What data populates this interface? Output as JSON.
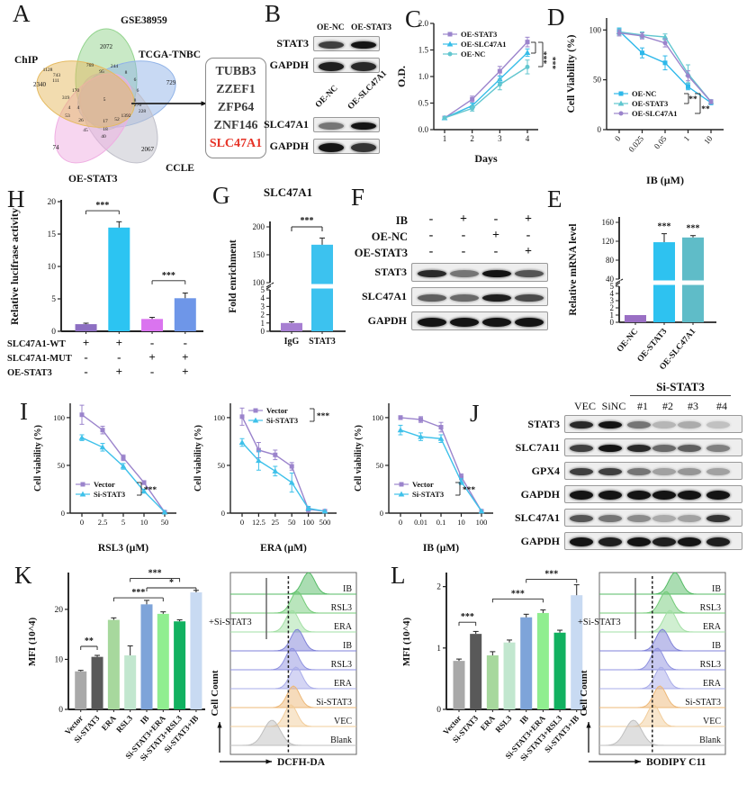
{
  "panelA": {
    "label": "A",
    "sets": [
      {
        "name": "GSE38959",
        "count": "2072",
        "color": "#93d48e"
      },
      {
        "name": "TCGA-TNBC",
        "count": "729",
        "color": "#92b4e8"
      },
      {
        "name": "CCLE",
        "count": "2067",
        "color": "#bfbfc9"
      },
      {
        "name": "OE-STAT3",
        "count": "74",
        "color": "#efaee2"
      },
      {
        "name": "ChIP",
        "count": "2340",
        "color": "#e5ba60"
      }
    ],
    "overlaps": [
      "1128",
      "743",
      "769",
      "95",
      "244",
      "8",
      "111",
      "6",
      "170",
      "6",
      "319",
      "5",
      "8",
      "276",
      "228",
      "4",
      "4",
      "53",
      "26",
      "17",
      "52",
      "1392",
      "45",
      "18",
      "40"
    ],
    "genes": [
      "TUBB3",
      "ZZEF1",
      "ZFP64",
      "ZNF146"
    ],
    "gene_highlight": "SLC47A1"
  },
  "panelB": {
    "label": "B",
    "group1": {
      "headers": [
        "OE-NC",
        "OE-STAT3"
      ],
      "rows": [
        {
          "label": "STAT3",
          "bands": [
            0.8,
            1
          ]
        },
        {
          "label": "GAPDH",
          "bands": [
            0.95,
            0.9
          ],
          "h": 10
        }
      ]
    },
    "group2": {
      "headers": [
        "OE-NC",
        "OE-SLC47A1"
      ],
      "rows": [
        {
          "label": "SLC47A1",
          "bands": [
            0.55,
            1
          ]
        },
        {
          "label": "GAPDH",
          "bands": [
            1,
            0.85
          ],
          "h": 10
        }
      ]
    }
  },
  "panelC": {
    "label": "C",
    "chart": {
      "type": "line",
      "ylabel": "O.D.",
      "xlabel": "Days",
      "ylim": [
        0,
        2
      ],
      "yticks": [
        0,
        0.5,
        1,
        1.5,
        2
      ],
      "x": [
        "1",
        "2",
        "3",
        "4"
      ],
      "series": [
        {
          "name": "OE-STAT3",
          "color": "#9b84cc",
          "marker": "square",
          "values": [
            0.22,
            0.57,
            1.1,
            1.65
          ],
          "err": [
            0.02,
            0.06,
            0.09,
            0.09
          ]
        },
        {
          "name": "OE-SLC47A1",
          "color": "#35bde8",
          "marker": "triangle",
          "values": [
            0.22,
            0.45,
            0.95,
            1.45
          ],
          "err": [
            0.02,
            0.05,
            0.06,
            0.07
          ]
        },
        {
          "name": "OE-NC",
          "color": "#62c6cf",
          "marker": "circle",
          "values": [
            0.22,
            0.4,
            0.85,
            1.18
          ],
          "err": [
            0.02,
            0.05,
            0.1,
            0.13
          ]
        }
      ],
      "sig": [
        "***",
        "***"
      ]
    }
  },
  "panelD": {
    "label": "D",
    "chart": {
      "type": "line",
      "ylabel": "Cell Viability (%)",
      "xlabel": "IB (µM)",
      "ylim": [
        0,
        112
      ],
      "yticks": [
        0,
        50,
        100
      ],
      "x": [
        "0",
        "0.025",
        "0.05",
        "1",
        "10"
      ],
      "series": [
        {
          "name": "OE-NC",
          "color": "#2eb8ea",
          "marker": "square",
          "values": [
            99,
            77,
            67,
            43,
            27
          ],
          "err": [
            3,
            5,
            7,
            3,
            2
          ]
        },
        {
          "name": "OE-STAT3",
          "color": "#5fc6cf",
          "marker": "triangle",
          "values": [
            98,
            95,
            93,
            56,
            28
          ],
          "err": [
            3,
            3,
            3,
            9,
            2
          ]
        },
        {
          "name": "OE-SLC47A1",
          "color": "#9b84cc",
          "marker": "circle",
          "values": [
            97,
            94,
            87,
            54,
            28
          ],
          "err": [
            3,
            3,
            4,
            5,
            2
          ]
        }
      ],
      "sig": [
        "**",
        "**"
      ]
    }
  },
  "panelE": {
    "label": "E",
    "chart": {
      "type": "broken-bar",
      "ylabel": "Relative mRNA level",
      "cats": [
        "OE-NC",
        "OE-STAT3",
        "OE-SLC47A1"
      ],
      "values": [
        1,
        118,
        128
      ],
      "err": [
        0.1,
        18,
        4
      ],
      "colors": [
        "#9a6fc4",
        "#2ec2f0",
        "#5fbcc8"
      ],
      "low_ticks": [
        0,
        1,
        2,
        3,
        4,
        5
      ],
      "high_ticks": [
        40,
        80,
        120,
        160
      ],
      "sig": [
        "",
        "***",
        "***"
      ]
    }
  },
  "panelF": {
    "label": "F",
    "conditions": [
      {
        "label": "IB",
        "syms": [
          "-",
          "+",
          "-",
          "+"
        ]
      },
      {
        "label": "OE-NC",
        "syms": [
          "-",
          "-",
          "+",
          "-"
        ]
      },
      {
        "label": "OE-STAT3",
        "syms": [
          "-",
          "-",
          "-",
          "+"
        ]
      }
    ],
    "rows": [
      {
        "label": "STAT3",
        "bands": [
          0.9,
          0.55,
          1,
          0.7
        ]
      },
      {
        "label": "SLC47A1",
        "bands": [
          0.65,
          0.6,
          0.95,
          0.75
        ]
      },
      {
        "label": "GAPDH",
        "bands": [
          1,
          1,
          1,
          1
        ],
        "h": 10
      }
    ]
  },
  "panelG": {
    "label": "G",
    "title": "SLC47A1",
    "chart": {
      "type": "broken-bar",
      "ylabel": "Fold enrichment",
      "cats": [
        "IgG",
        "STAT3"
      ],
      "values": [
        1,
        168
      ],
      "err": [
        0.15,
        12
      ],
      "colors": [
        "#a77fd2",
        "#3cc2ef"
      ],
      "low_ticks": [
        0,
        1,
        2,
        3,
        4,
        5
      ],
      "high_ticks": [
        100,
        150,
        200
      ],
      "sig_bracket": "***"
    }
  },
  "panelH": {
    "label": "H",
    "chart": {
      "type": "bar",
      "ylabel": "Relative lucifrase activity",
      "yticks": [
        0,
        5,
        10,
        15,
        20
      ],
      "values": [
        1.1,
        16,
        1.9,
        5.1
      ],
      "err": [
        0.15,
        0.9,
        0.25,
        0.8
      ],
      "colors": [
        "#8d6fc2",
        "#2cc4f2",
        "#da74ef",
        "#6e96e8"
      ],
      "brackets": [
        [
          0,
          1,
          18.6,
          "***"
        ],
        [
          2,
          3,
          7.8,
          "***"
        ]
      ]
    },
    "matrix": [
      {
        "label": "SLC47A1-WT",
        "syms": [
          "+",
          "+",
          "-",
          "-"
        ]
      },
      {
        "label": "SLC47A1-MUT",
        "syms": [
          "-",
          "-",
          "+",
          "+"
        ]
      },
      {
        "label": "OE-STAT3",
        "syms": [
          "-",
          "+",
          "-",
          "+"
        ]
      }
    ]
  },
  "panelI": {
    "label": "I",
    "charts": [
      {
        "ylabel": "Cell viability (%)",
        "xlabel": "RSL3 (µM)",
        "ylim": [
          0,
          115
        ],
        "yticks": [
          0,
          50,
          100
        ],
        "x": [
          "0",
          "2.5",
          "5",
          "10",
          "50"
        ],
        "series": [
          {
            "name": "Vector",
            "color": "#9b84cc",
            "marker": "square",
            "values": [
              103,
              87,
              58,
              32,
              1
            ],
            "err": [
              10,
              4,
              3,
              2,
              1
            ]
          },
          {
            "name": "Si-STAT3",
            "color": "#3ec1ea",
            "marker": "triangle",
            "values": [
              79,
              69,
              49,
              23,
              1
            ],
            "err": [
              3,
              4,
              3,
              2,
              1
            ]
          }
        ],
        "sig": "***"
      },
      {
        "ylabel": "Cell viability (%)",
        "xlabel": "ERA (µM)",
        "ylim": [
          0,
          115
        ],
        "yticks": [
          0,
          50,
          100
        ],
        "x": [
          "0",
          "12.5",
          "25",
          "50",
          "100",
          "500"
        ],
        "series": [
          {
            "name": "Vector",
            "color": "#9b84cc",
            "marker": "square",
            "values": [
              101,
              66,
              61,
              49,
              4,
              2
            ],
            "err": [
              9,
              8,
              5,
              4,
              3,
              1
            ]
          },
          {
            "name": "Si-STAT3",
            "color": "#3ec1ea",
            "marker": "triangle",
            "values": [
              74,
              55,
              44,
              32,
              5,
              2
            ],
            "err": [
              4,
              10,
              5,
              10,
              2,
              1
            ]
          }
        ],
        "sig": "***"
      },
      {
        "ylabel": "Cell viability (%)",
        "xlabel": "IB (µM)",
        "ylim": [
          0,
          115
        ],
        "yticks": [
          0,
          50,
          100
        ],
        "x": [
          "0",
          "0.01",
          "0.1",
          "10",
          "100"
        ],
        "series": [
          {
            "name": "Vector",
            "color": "#9b84cc",
            "marker": "square",
            "values": [
              100,
              98,
              90,
              38,
              2
            ],
            "err": [
              2,
              3,
              5,
              3,
              1
            ]
          },
          {
            "name": "Si-STAT3",
            "color": "#3ec1ea",
            "marker": "triangle",
            "values": [
              87,
              80,
              78,
              33,
              2
            ],
            "err": [
              5,
              4,
              4,
              3,
              1
            ]
          }
        ],
        "sig": "***"
      }
    ]
  },
  "panelJ": {
    "label": "J",
    "group_header": "Si-STAT3",
    "cols": [
      "VEC",
      "SiNC",
      "#1",
      "#2",
      "#3",
      "#4"
    ],
    "rows": [
      {
        "label": "STAT3",
        "bands": [
          0.9,
          1,
          0.55,
          0.25,
          0.3,
          0.2
        ]
      },
      {
        "label": "SLC7A11",
        "bands": [
          0.8,
          1,
          0.9,
          0.6,
          0.65,
          0.5
        ]
      },
      {
        "label": "GPX4",
        "bands": [
          0.8,
          0.8,
          0.55,
          0.35,
          0.4,
          0.35
        ]
      },
      {
        "label": "GAPDH",
        "bands": [
          1,
          1,
          1,
          1,
          1,
          1
        ],
        "h": 10
      },
      {
        "label": "SLC47A1",
        "bands": [
          0.7,
          0.55,
          0.45,
          0.3,
          0.35,
          0.85
        ]
      },
      {
        "label": "GAPDH",
        "bands": [
          1,
          0.95,
          1,
          0.95,
          1,
          0.95
        ],
        "h": 10
      }
    ]
  },
  "panelK": {
    "label": "K",
    "bar": {
      "type": "bar",
      "ylabel": "MFI (10^4)",
      "yticks": [
        0,
        10,
        20
      ],
      "cats": [
        "Vector",
        "Si-STAT3",
        "ERA",
        "RSL3",
        "IB",
        "Si-STAT3+ERA",
        "Si-STAT3+RSL3",
        "Si-STAT3+IB"
      ],
      "values": [
        7.6,
        10.5,
        17.9,
        10.8,
        21,
        19.1,
        17.6,
        23.4
      ],
      "err": [
        0.2,
        0.3,
        0.4,
        1.9,
        0.8,
        0.4,
        0.3,
        0.4
      ],
      "colors": [
        "#a9a9a9",
        "#595959",
        "#a7d89d",
        "#c2e7cf",
        "#7ea4d9",
        "#90ee90",
        "#12b160",
        "#c8daf2"
      ],
      "brackets": [
        [
          0,
          1,
          12.6,
          "**"
        ],
        [
          2,
          5,
          22.3,
          "***"
        ],
        [
          3,
          6,
          26.2,
          "***"
        ],
        [
          4,
          7,
          24.3,
          "*"
        ]
      ]
    },
    "flow": {
      "ylabel": "Cell Count",
      "xlabel": "DCFH-DA",
      "bracket": "+Si-STAT3",
      "dash": 0.46,
      "rows": [
        {
          "label": "IB",
          "color": "#55bb66",
          "peak": 0.62
        },
        {
          "label": "RSL3",
          "color": "#74cb79",
          "peak": 0.53
        },
        {
          "label": "ERA",
          "color": "#a2dfa4",
          "peak": 0.49
        },
        {
          "label": "IB",
          "color": "#7f81d8",
          "peak": 0.53
        },
        {
          "label": "RSL3",
          "color": "#8f92e0",
          "peak": 0.49
        },
        {
          "label": "ERA",
          "color": "#a9ace9",
          "peak": 0.52
        },
        {
          "label": "Si-STAT3",
          "color": "#edb878",
          "peak": 0.5
        },
        {
          "label": "VEC",
          "color": "#f2cd9b",
          "peak": 0.48
        },
        {
          "label": "Blank",
          "color": "#bfbfbf",
          "peak": 0.33,
          "w": 1.3
        }
      ]
    }
  },
  "panelL": {
    "label": "L",
    "bar": {
      "type": "bar",
      "ylabel": "MFI (10^4)",
      "yticks": [
        0,
        1,
        2
      ],
      "cats": [
        "Vector",
        "Si-STAT3",
        "ERA",
        "RSL3",
        "IB",
        "Si-STAT3+ERA",
        "Si-STAT3+RSL3",
        "Si-STAT3+IB"
      ],
      "values": [
        0.79,
        1.23,
        0.88,
        1.09,
        1.5,
        1.57,
        1.25,
        1.86
      ],
      "err": [
        0.03,
        0.04,
        0.06,
        0.04,
        0.05,
        0.05,
        0.04,
        0.17
      ],
      "colors": [
        "#a9a9a9",
        "#595959",
        "#a7d89d",
        "#c2e7cf",
        "#7ea4d9",
        "#90ee90",
        "#12b160",
        "#c8daf2"
      ],
      "brackets": [
        [
          0,
          1,
          1.42,
          "***"
        ],
        [
          2,
          5,
          1.8,
          "***"
        ],
        [
          4,
          7,
          2.12,
          "***"
        ]
      ]
    },
    "flow": {
      "ylabel": "Cell Count",
      "xlabel": "BODIPY C11",
      "bracket": "+Si-STAT3",
      "dash": 0.42,
      "rows": [
        {
          "label": "IB",
          "color": "#55bb66",
          "peak": 0.6
        },
        {
          "label": "RSL3",
          "color": "#74cb79",
          "peak": 0.53
        },
        {
          "label": "ERA",
          "color": "#a2dfa4",
          "peak": 0.56
        },
        {
          "label": "IB",
          "color": "#7f81d8",
          "peak": 0.5
        },
        {
          "label": "RSL3",
          "color": "#8f92e0",
          "peak": 0.46
        },
        {
          "label": "ERA",
          "color": "#a9ace9",
          "peak": 0.49
        },
        {
          "label": "Si-STAT3",
          "color": "#edb878",
          "peak": 0.48
        },
        {
          "label": "VEC",
          "color": "#f2cd9b",
          "peak": 0.43
        },
        {
          "label": "Blank",
          "color": "#bfbfbf",
          "peak": 0.27,
          "w": 1.3
        }
      ]
    }
  }
}
